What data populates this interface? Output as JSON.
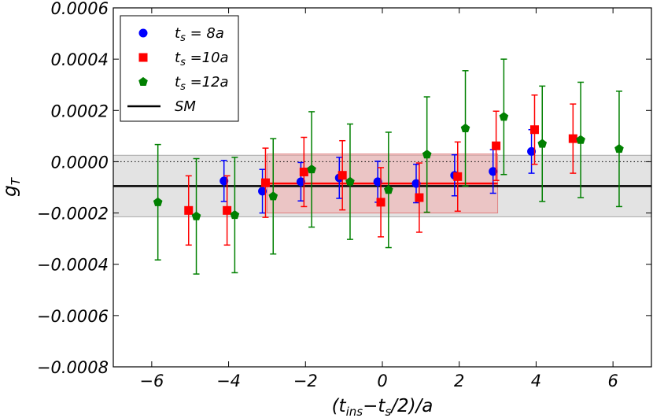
{
  "chart_data": {
    "type": "scatter",
    "title": "",
    "xlabel_parts": {
      "open": "(t",
      "ins": "ins",
      "minus": "−t",
      "s": "s",
      "close": "/2)/a"
    },
    "ylabel_parts": {
      "g": "g",
      "sub": "T"
    },
    "xlim": [
      -7,
      7
    ],
    "ylim": [
      -0.0008,
      0.0006
    ],
    "x_ticks": [
      -6,
      -4,
      -2,
      0,
      2,
      4,
      6
    ],
    "x_tick_labels": [
      "−6",
      "−4",
      "−2",
      "0",
      "2",
      "4",
      "6"
    ],
    "y_ticks": [
      0.0006,
      0.0004,
      0.0002,
      0.0,
      -0.0002,
      -0.0004,
      -0.0006,
      -0.0008
    ],
    "y_tick_labels": [
      "0.0006",
      "0.0004",
      "0.0002",
      "0.0000",
      "−0.0002",
      "−0.0004",
      "−0.0006",
      "−0.0008"
    ],
    "grid": false,
    "legend_position": "top-left",
    "series": [
      {
        "name_parts": {
          "t": "t",
          "sub": "s",
          "rest": " = 8a"
        },
        "color": "#0000ff",
        "marker": "circle",
        "points": [
          {
            "x": -4,
            "y": -7.5e-05,
            "err": 8e-05
          },
          {
            "x": -3,
            "y": -0.000115,
            "err": 8.5e-05
          },
          {
            "x": -2,
            "y": -7.8e-05,
            "err": 7.5e-05
          },
          {
            "x": -1,
            "y": -6.3e-05,
            "err": 8e-05
          },
          {
            "x": 0,
            "y": -7.8e-05,
            "err": 8e-05
          },
          {
            "x": 1,
            "y": -8.5e-05,
            "err": 7.5e-05
          },
          {
            "x": 2,
            "y": -5.3e-05,
            "err": 8e-05
          },
          {
            "x": 3,
            "y": -3.8e-05,
            "err": 8.5e-05
          },
          {
            "x": 4,
            "y": 4e-05,
            "err": 8.5e-05
          }
        ]
      },
      {
        "name_parts": {
          "t": "t",
          "sub": "s",
          "rest": " =10a"
        },
        "color": "#ff0000",
        "marker": "square",
        "points": [
          {
            "x": -5,
            "y": -0.00019,
            "err": 0.000135
          },
          {
            "x": -4,
            "y": -0.00019,
            "err": 0.000135
          },
          {
            "x": -3,
            "y": -8.2e-05,
            "err": 0.000135
          },
          {
            "x": -2,
            "y": -4e-05,
            "err": 0.000135
          },
          {
            "x": -1,
            "y": -5.3e-05,
            "err": 0.000135
          },
          {
            "x": 0,
            "y": -0.000158,
            "err": 0.000135
          },
          {
            "x": 1,
            "y": -0.00014,
            "err": 0.000135
          },
          {
            "x": 2,
            "y": -5.8e-05,
            "err": 0.000135
          },
          {
            "x": 3,
            "y": 6.2e-05,
            "err": 0.000135
          },
          {
            "x": 4,
            "y": 0.000125,
            "err": 0.000135
          },
          {
            "x": 5,
            "y": 9e-05,
            "err": 0.000135
          }
        ]
      },
      {
        "name_parts": {
          "t": "t",
          "sub": "s",
          "rest": " =12a"
        },
        "color": "#008000",
        "marker": "pentagon",
        "points": [
          {
            "x": -6,
            "y": -0.000158,
            "err": 0.000225
          },
          {
            "x": -5,
            "y": -0.000213,
            "err": 0.000225
          },
          {
            "x": -4,
            "y": -0.000208,
            "err": 0.000225
          },
          {
            "x": -3,
            "y": -0.000135,
            "err": 0.000225
          },
          {
            "x": -2,
            "y": -3e-05,
            "err": 0.000225
          },
          {
            "x": -1,
            "y": -7.8e-05,
            "err": 0.000225
          },
          {
            "x": 0,
            "y": -0.00011,
            "err": 0.000225
          },
          {
            "x": 1,
            "y": 2.8e-05,
            "err": 0.000225
          },
          {
            "x": 2,
            "y": 0.00013,
            "err": 0.000225
          },
          {
            "x": 3,
            "y": 0.000175,
            "err": 0.000225
          },
          {
            "x": 4,
            "y": 7e-05,
            "err": 0.000225
          },
          {
            "x": 5,
            "y": 8.5e-05,
            "err": 0.000225
          },
          {
            "x": 6,
            "y": 5e-05,
            "err": 0.000225
          }
        ]
      }
    ],
    "offsets": {
      "8a": -0.12,
      "10a": -0.04,
      "12a": 0.16
    },
    "sm_line": {
      "name": "SM",
      "y": -9.5e-05,
      "color": "#000000"
    },
    "sm_band": {
      "y_low": -0.000215,
      "y_high": 2.5e-05,
      "color": "#cccccc"
    },
    "fit_band": {
      "x_low": -3,
      "x_high": 3,
      "y_low": -0.0002,
      "y_high": 3e-05,
      "y_center": -8.5e-05,
      "color": "#f4a0a0",
      "line_color": "#ff0000"
    },
    "zero_line": {
      "y": 0.0,
      "style": "dotted"
    }
  }
}
